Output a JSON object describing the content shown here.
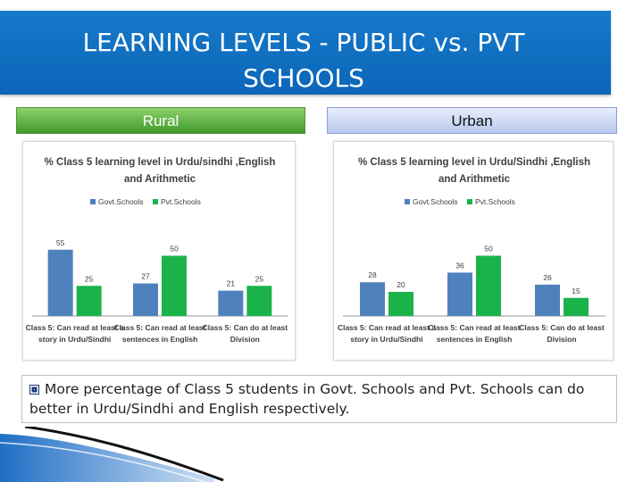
{
  "title": {
    "line1": "LEARNING LEVELS - PUBLIC vs. PVT",
    "line2": "SCHOOLS"
  },
  "colors": {
    "govt": "#4f81bd",
    "pvt": "#1ab34a",
    "title_bg": "#0b66b8"
  },
  "panels": [
    {
      "header": "Rural"
    },
    {
      "header": "Urban"
    }
  ],
  "chart_data": [
    {
      "type": "bar",
      "title_lines": [
        "% Class 5 learning level in Urdu/sindhi ,English",
        "and Arithmetic"
      ],
      "categories": [
        [
          "Class 5: Can read at least a",
          "story in Urdu/Sindhi"
        ],
        [
          "Class 5: Can read at least",
          "sentences in English"
        ],
        [
          "Class 5: Can do at least",
          "Division"
        ]
      ],
      "series": [
        {
          "name": "Govt.Schools",
          "values": [
            55,
            27,
            21
          ]
        },
        {
          "name": "Pvt.Schools",
          "values": [
            25,
            50,
            25
          ]
        }
      ],
      "legend": "top",
      "ylim": [
        0,
        60
      ],
      "grid": false
    },
    {
      "type": "bar",
      "title_lines": [
        "% Class 5 learning level in Urdu/Sindhi ,English",
        "and Arithmetic"
      ],
      "categories": [
        [
          "Class 5: Can read at least a",
          "story in Urdu/Sindhi"
        ],
        [
          "Class 5: Can read at least",
          "sentences in English"
        ],
        [
          "Class 5: Can do at least",
          "Division"
        ]
      ],
      "series": [
        {
          "name": "Govt.Schools",
          "values": [
            28,
            36,
            26
          ]
        },
        {
          "name": "Pvt.Schools",
          "values": [
            20,
            50,
            15
          ]
        }
      ],
      "legend": "top",
      "ylim": [
        0,
        60
      ],
      "grid": false
    }
  ],
  "note": "More percentage of Class 5 students in Govt. Schools and Pvt. Schools can do better in Urdu/Sindhi and English respectively."
}
